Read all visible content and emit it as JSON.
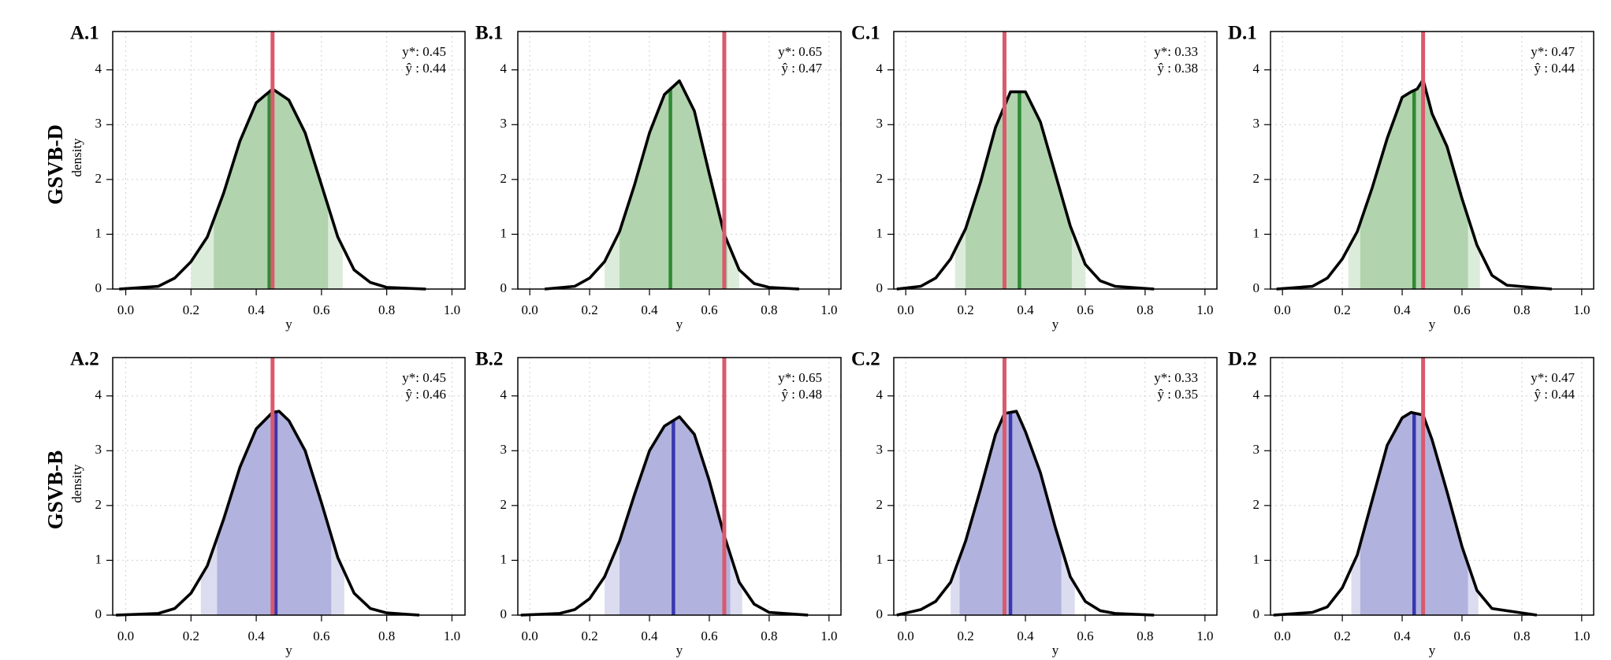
{
  "rows": [
    "GSVB-D",
    "GSVB-B"
  ],
  "chart_data": [
    {
      "type": "density",
      "title": "A.1",
      "ylabel": "density",
      "xlabel": "y",
      "x": [
        -0.02,
        0.1,
        0.15,
        0.2,
        0.25,
        0.3,
        0.35,
        0.4,
        0.45,
        0.5,
        0.55,
        0.6,
        0.65,
        0.7,
        0.75,
        0.8,
        0.92
      ],
      "y": [
        0,
        0.05,
        0.2,
        0.5,
        0.95,
        1.75,
        2.7,
        3.4,
        3.65,
        3.45,
        2.85,
        1.9,
        0.95,
        0.35,
        0.12,
        0.03,
        0
      ],
      "interval_inner": [
        0.27,
        0.62
      ],
      "interval_outer": [
        0.2,
        0.665
      ],
      "y_star": {
        "value": 0.45,
        "label": "y*: 0.45"
      },
      "y_hat": {
        "value": 0.44,
        "label": "ŷ : 0.44"
      },
      "color_inner": "#b1d3ae",
      "color_outer": "#dcecda",
      "estimate_color": "#2e8a34",
      "truth_color": "#d95a6c",
      "xlim": [
        -0.04,
        1.04
      ],
      "ylim": [
        0,
        4.7
      ],
      "xticks": [
        {
          "value": 0,
          "label": "0.0"
        },
        0.2,
        0.4,
        0.6,
        0.8,
        {
          "value": 1,
          "label": "1.0"
        }
      ],
      "yticks": [
        0,
        1,
        2,
        3,
        4
      ],
      "grid": true
    },
    {
      "type": "density",
      "title": "B.1",
      "xlabel": "y",
      "x": [
        0.05,
        0.15,
        0.2,
        0.25,
        0.3,
        0.35,
        0.4,
        0.45,
        0.5,
        0.55,
        0.6,
        0.65,
        0.7,
        0.75,
        0.8,
        0.9
      ],
      "y": [
        0,
        0.05,
        0.2,
        0.5,
        1.05,
        1.9,
        2.85,
        3.55,
        3.8,
        3.25,
        2.1,
        1.0,
        0.35,
        0.1,
        0.03,
        0
      ],
      "interval_inner": [
        0.3,
        0.66
      ],
      "interval_outer": [
        0.25,
        0.7
      ],
      "y_star": {
        "value": 0.65,
        "label": "y*: 0.65"
      },
      "y_hat": {
        "value": 0.47,
        "label": "ŷ : 0.47"
      },
      "color_inner": "#b1d3ae",
      "color_outer": "#dcecda",
      "estimate_color": "#2e8a34",
      "truth_color": "#d95a6c",
      "xlim": [
        -0.04,
        1.04
      ],
      "ylim": [
        0,
        4.7
      ],
      "xticks": [
        {
          "value": 0,
          "label": "0.0"
        },
        0.2,
        0.4,
        0.6,
        0.8,
        {
          "value": 1,
          "label": "1.0"
        }
      ],
      "yticks": [
        0,
        1,
        2,
        3,
        4
      ],
      "grid": true
    },
    {
      "type": "density",
      "title": "C.1",
      "xlabel": "y",
      "x": [
        -0.03,
        0.05,
        0.1,
        0.15,
        0.2,
        0.25,
        0.3,
        0.35,
        0.4,
        0.45,
        0.5,
        0.55,
        0.6,
        0.65,
        0.7,
        0.83
      ],
      "y": [
        0,
        0.05,
        0.2,
        0.55,
        1.1,
        1.95,
        2.95,
        3.6,
        3.6,
        3.05,
        2.1,
        1.15,
        0.45,
        0.15,
        0.05,
        0
      ],
      "interval_inner": [
        0.2,
        0.555
      ],
      "interval_outer": [
        0.165,
        0.6
      ],
      "y_star": {
        "value": 0.33,
        "label": "y*: 0.33"
      },
      "y_hat": {
        "value": 0.38,
        "label": "ŷ : 0.38"
      },
      "color_inner": "#b1d3ae",
      "color_outer": "#dcecda",
      "estimate_color": "#2e8a34",
      "truth_color": "#d95a6c",
      "xlim": [
        -0.04,
        1.04
      ],
      "ylim": [
        0,
        4.7
      ],
      "xticks": [
        {
          "value": 0,
          "label": "0.0"
        },
        0.2,
        0.4,
        0.6,
        0.8,
        {
          "value": 1,
          "label": "1.0"
        }
      ],
      "yticks": [
        0,
        1,
        2,
        3,
        4
      ],
      "grid": true
    },
    {
      "type": "density",
      "title": "D.1",
      "xlabel": "y",
      "x": [
        -0.02,
        0.1,
        0.15,
        0.2,
        0.25,
        0.3,
        0.35,
        0.4,
        0.43,
        0.45,
        0.47,
        0.5,
        0.55,
        0.6,
        0.65,
        0.7,
        0.75,
        0.9
      ],
      "y": [
        0,
        0.05,
        0.2,
        0.55,
        1.05,
        1.85,
        2.75,
        3.5,
        3.6,
        3.65,
        3.82,
        3.2,
        2.6,
        1.65,
        0.8,
        0.25,
        0.07,
        0
      ],
      "interval_inner": [
        0.26,
        0.62
      ],
      "interval_outer": [
        0.22,
        0.66
      ],
      "y_star": {
        "value": 0.47,
        "label": "y*: 0.47"
      },
      "y_hat": {
        "value": 0.44,
        "label": "ŷ : 0.44"
      },
      "color_inner": "#b1d3ae",
      "color_outer": "#dcecda",
      "estimate_color": "#2e8a34",
      "truth_color": "#d95a6c",
      "xlim": [
        -0.04,
        1.04
      ],
      "ylim": [
        0,
        4.7
      ],
      "xticks": [
        {
          "value": 0,
          "label": "0.0"
        },
        0.2,
        0.4,
        0.6,
        0.8,
        {
          "value": 1,
          "label": "1.0"
        }
      ],
      "yticks": [
        0,
        1,
        2,
        3,
        4
      ],
      "grid": true
    },
    {
      "type": "density",
      "title": "A.2",
      "ylabel": "density",
      "xlabel": "y",
      "x": [
        -0.03,
        0.1,
        0.15,
        0.2,
        0.25,
        0.3,
        0.35,
        0.4,
        0.45,
        0.47,
        0.5,
        0.55,
        0.6,
        0.65,
        0.7,
        0.75,
        0.8,
        0.9
      ],
      "y": [
        0,
        0.03,
        0.12,
        0.4,
        0.9,
        1.75,
        2.7,
        3.4,
        3.7,
        3.72,
        3.55,
        3.0,
        2.05,
        1.05,
        0.4,
        0.12,
        0.04,
        0
      ],
      "interval_inner": [
        0.28,
        0.63
      ],
      "interval_outer": [
        0.23,
        0.67
      ],
      "y_star": {
        "value": 0.45,
        "label": "y*: 0.45"
      },
      "y_hat": {
        "value": 0.46,
        "label": "ŷ : 0.46"
      },
      "color_inner": "#b2b2de",
      "color_outer": "#dcdcf0",
      "estimate_color": "#3838b0",
      "truth_color": "#d95a6c",
      "xlim": [
        -0.04,
        1.04
      ],
      "ylim": [
        0,
        4.7
      ],
      "xticks": [
        {
          "value": 0,
          "label": "0.0"
        },
        0.2,
        0.4,
        0.6,
        0.8,
        {
          "value": 1,
          "label": "1.0"
        }
      ],
      "yticks": [
        0,
        1,
        2,
        3,
        4
      ],
      "grid": true
    },
    {
      "type": "density",
      "title": "B.2",
      "xlabel": "y",
      "x": [
        -0.03,
        0.1,
        0.15,
        0.2,
        0.25,
        0.3,
        0.35,
        0.4,
        0.45,
        0.5,
        0.55,
        0.6,
        0.65,
        0.7,
        0.75,
        0.8,
        0.93
      ],
      "y": [
        0,
        0.03,
        0.1,
        0.3,
        0.7,
        1.35,
        2.2,
        3.0,
        3.45,
        3.62,
        3.3,
        2.45,
        1.45,
        0.6,
        0.2,
        0.05,
        0
      ],
      "interval_inner": [
        0.3,
        0.67
      ],
      "interval_outer": [
        0.25,
        0.71
      ],
      "y_star": {
        "value": 0.65,
        "label": "y*: 0.65"
      },
      "y_hat": {
        "value": 0.48,
        "label": "ŷ : 0.48"
      },
      "color_inner": "#b2b2de",
      "color_outer": "#dcdcf0",
      "estimate_color": "#3838b0",
      "truth_color": "#d95a6c",
      "xlim": [
        -0.04,
        1.04
      ],
      "ylim": [
        0,
        4.7
      ],
      "xticks": [
        {
          "value": 0,
          "label": "0.0"
        },
        0.2,
        0.4,
        0.6,
        0.8,
        {
          "value": 1,
          "label": "1.0"
        }
      ],
      "yticks": [
        0,
        1,
        2,
        3,
        4
      ],
      "grid": true
    },
    {
      "type": "density",
      "title": "C.2",
      "xlabel": "y",
      "x": [
        -0.03,
        0.05,
        0.1,
        0.15,
        0.2,
        0.25,
        0.3,
        0.33,
        0.37,
        0.4,
        0.45,
        0.5,
        0.55,
        0.6,
        0.65,
        0.7,
        0.83
      ],
      "y": [
        0,
        0.1,
        0.25,
        0.6,
        1.35,
        2.3,
        3.3,
        3.68,
        3.72,
        3.35,
        2.6,
        1.6,
        0.7,
        0.25,
        0.08,
        0.03,
        0
      ],
      "interval_inner": [
        0.18,
        0.52
      ],
      "interval_outer": [
        0.15,
        0.565
      ],
      "y_star": {
        "value": 0.33,
        "label": "y*: 0.33"
      },
      "y_hat": {
        "value": 0.35,
        "label": "ŷ : 0.35"
      },
      "color_inner": "#b2b2de",
      "color_outer": "#dcdcf0",
      "estimate_color": "#3838b0",
      "truth_color": "#d95a6c",
      "xlim": [
        -0.04,
        1.04
      ],
      "ylim": [
        0,
        4.7
      ],
      "xticks": [
        {
          "value": 0,
          "label": "0.0"
        },
        0.2,
        0.4,
        0.6,
        0.8,
        {
          "value": 1,
          "label": "1.0"
        }
      ],
      "yticks": [
        0,
        1,
        2,
        3,
        4
      ],
      "grid": true
    },
    {
      "type": "density",
      "title": "D.2",
      "xlabel": "y",
      "x": [
        -0.03,
        0.1,
        0.15,
        0.2,
        0.25,
        0.3,
        0.35,
        0.4,
        0.43,
        0.47,
        0.5,
        0.55,
        0.6,
        0.65,
        0.7,
        0.85
      ],
      "y": [
        0,
        0.05,
        0.15,
        0.5,
        1.1,
        2.1,
        3.1,
        3.6,
        3.7,
        3.65,
        3.2,
        2.25,
        1.25,
        0.45,
        0.12,
        0
      ],
      "interval_inner": [
        0.26,
        0.62
      ],
      "interval_outer": [
        0.23,
        0.655
      ],
      "y_star": {
        "value": 0.47,
        "label": "y*: 0.47"
      },
      "y_hat": {
        "value": 0.44,
        "label": "ŷ : 0.44"
      },
      "color_inner": "#b2b2de",
      "color_outer": "#dcdcf0",
      "estimate_color": "#3838b0",
      "truth_color": "#d95a6c",
      "xlim": [
        -0.04,
        1.04
      ],
      "ylim": [
        0,
        4.7
      ],
      "xticks": [
        {
          "value": 0,
          "label": "0.0"
        },
        0.2,
        0.4,
        0.6,
        0.8,
        {
          "value": 1,
          "label": "1.0"
        }
      ],
      "yticks": [
        0,
        1,
        2,
        3,
        4
      ],
      "grid": true
    }
  ]
}
